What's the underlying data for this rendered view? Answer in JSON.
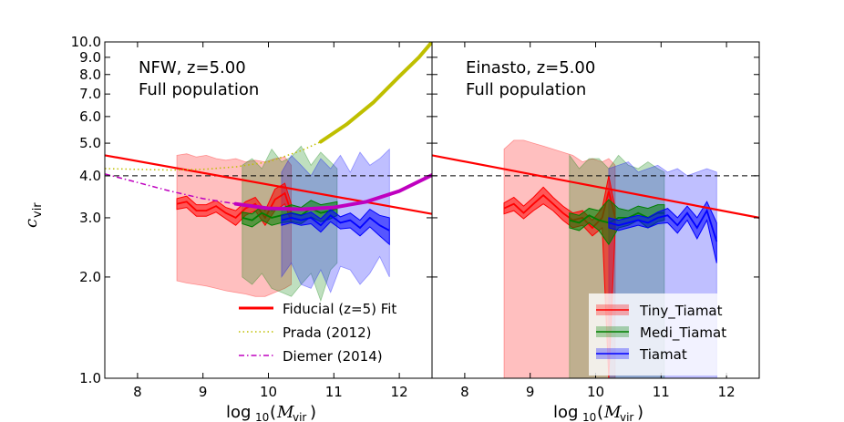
{
  "chart_data": [
    {
      "type": "line",
      "title": "",
      "annotation_line1": "NFW, z=5.00",
      "annotation_line2": "Full population",
      "xlabel": "log10(Mvir)",
      "ylabel": "c_vir",
      "xlim": [
        7.5,
        12.5
      ],
      "ylim": [
        1.0,
        10.0
      ],
      "yscale": "log",
      "xticks": [
        "8",
        "9",
        "10",
        "11",
        "12"
      ],
      "yticks": [
        "1.0",
        "2.0",
        "3.0",
        "4.0",
        "5.0",
        "6.0",
        "7.0",
        "8.0",
        "9.0",
        "10.0"
      ],
      "reference_line": 4.0,
      "legend": {
        "placement": "bottom-right",
        "entries": [
          "Fiducial (z=5) Fit",
          "Prada  (2012)",
          "Diemer (2014)"
        ]
      },
      "series": [
        {
          "name": "Fiducial (z=5) Fit",
          "color": "#ff0000",
          "style": "solid",
          "x": [
            7.5,
            12.5
          ],
          "y": [
            4.6,
            3.08
          ]
        },
        {
          "name": "Prada  (2012)",
          "color": "#bfbf00",
          "style": "dotted",
          "x": [
            7.5,
            8.0,
            8.5,
            9.0,
            9.5,
            10.0,
            10.5,
            10.8
          ],
          "y": [
            4.2,
            4.18,
            4.16,
            4.18,
            4.25,
            4.4,
            4.75,
            5.05
          ]
        },
        {
          "name": "Prada (2012) computed range",
          "color": "#bfbf00",
          "style": "thick",
          "x": [
            10.8,
            11.2,
            11.6,
            12.0,
            12.3,
            12.5
          ],
          "y": [
            5.05,
            5.7,
            6.6,
            7.9,
            9.0,
            10.0
          ]
        },
        {
          "name": "Diemer (2014)",
          "color": "#bf00bf",
          "style": "dashdot",
          "x": [
            7.5,
            8.0,
            8.5,
            9.0,
            9.5
          ],
          "y": [
            4.05,
            3.82,
            3.6,
            3.42,
            3.3
          ]
        },
        {
          "name": "Diemer (2014) computed range",
          "color": "#bf00bf",
          "style": "thick",
          "x": [
            9.5,
            10.0,
            10.5,
            11.0,
            11.5,
            12.0,
            12.5
          ],
          "y": [
            3.3,
            3.2,
            3.18,
            3.22,
            3.35,
            3.6,
            4.02
          ]
        },
        {
          "name": "Tiny_Tiamat",
          "color": "#ff0000",
          "fill": "#ff0000",
          "x": [
            8.6,
            8.75,
            8.9,
            9.05,
            9.2,
            9.35,
            9.5,
            9.65,
            9.8,
            9.95,
            10.1,
            10.25,
            10.35
          ],
          "y": [
            3.3,
            3.35,
            3.15,
            3.15,
            3.25,
            3.1,
            3.0,
            3.2,
            3.3,
            3.0,
            3.4,
            3.55,
            3.1
          ],
          "lo": [
            3.18,
            3.22,
            3.03,
            3.03,
            3.12,
            2.98,
            2.85,
            3.05,
            3.15,
            2.85,
            3.15,
            3.3,
            2.9
          ],
          "hi": [
            3.42,
            3.48,
            3.28,
            3.28,
            3.38,
            3.22,
            3.15,
            3.35,
            3.45,
            3.15,
            3.65,
            3.8,
            3.3
          ],
          "lo2": [
            1.95,
            1.92,
            1.9,
            1.88,
            1.85,
            1.82,
            1.8,
            1.78,
            1.75,
            1.75,
            1.8,
            1.85,
            1.9
          ],
          "hi2": [
            4.6,
            4.65,
            4.55,
            4.6,
            4.5,
            4.45,
            4.5,
            4.4,
            4.45,
            4.4,
            4.5,
            4.55,
            4.3
          ]
        },
        {
          "name": "Medi_Tiamat",
          "color": "#007f00",
          "fill": "#008000",
          "x": [
            9.6,
            9.75,
            9.9,
            10.05,
            10.2,
            10.35,
            10.5,
            10.65,
            10.8,
            10.95,
            11.05
          ],
          "y": [
            3.0,
            2.95,
            3.1,
            3.0,
            3.05,
            3.1,
            3.05,
            3.2,
            3.1,
            3.15,
            3.2
          ],
          "lo": [
            2.88,
            2.82,
            2.95,
            2.85,
            2.9,
            2.92,
            2.88,
            3.02,
            2.92,
            2.98,
            3.05
          ],
          "hi": [
            3.12,
            3.08,
            3.25,
            3.15,
            3.2,
            3.28,
            3.22,
            3.38,
            3.28,
            3.32,
            3.35
          ],
          "lo2": [
            2.0,
            1.9,
            2.05,
            1.85,
            1.8,
            1.75,
            1.9,
            2.05,
            1.7,
            2.1,
            2.2
          ],
          "hi2": [
            4.3,
            4.5,
            4.2,
            4.8,
            4.4,
            4.55,
            4.9,
            4.3,
            4.7,
            4.4,
            4.2
          ]
        },
        {
          "name": "Tiamat",
          "color": "#0000ff",
          "fill": "#0000ff",
          "x": [
            10.2,
            10.35,
            10.5,
            10.65,
            10.8,
            10.95,
            11.1,
            11.25,
            11.4,
            11.55,
            11.7,
            11.85
          ],
          "y": [
            2.95,
            3.0,
            2.95,
            3.0,
            2.85,
            3.05,
            2.9,
            2.95,
            2.8,
            3.0,
            2.85,
            2.75
          ],
          "lo": [
            2.85,
            2.9,
            2.85,
            2.88,
            2.72,
            2.92,
            2.78,
            2.8,
            2.65,
            2.82,
            2.65,
            2.5
          ],
          "hi": [
            3.05,
            3.1,
            3.05,
            3.12,
            2.98,
            3.18,
            3.02,
            3.1,
            2.95,
            3.18,
            3.05,
            3.0
          ],
          "lo2": [
            2.0,
            2.2,
            1.9,
            1.85,
            2.1,
            1.8,
            2.15,
            2.1,
            1.9,
            2.05,
            2.3,
            2.0
          ],
          "hi2": [
            4.1,
            4.6,
            4.3,
            4.0,
            4.5,
            4.2,
            4.6,
            4.1,
            4.7,
            4.3,
            4.5,
            4.8
          ]
        }
      ]
    },
    {
      "type": "line",
      "title": "",
      "annotation_line1": "Einasto, z=5.00",
      "annotation_line2": "Full population",
      "xlabel": "log10(Mvir)",
      "xlim": [
        7.5,
        12.5
      ],
      "ylim": [
        1.0,
        10.0
      ],
      "yscale": "log",
      "xticks": [
        "8",
        "9",
        "10",
        "11",
        "12"
      ],
      "reference_line": 4.0,
      "legend": {
        "placement": "bottom-right",
        "entries": [
          "Tiny_Tiamat",
          "Medi_Tiamat",
          "Tiamat"
        ]
      },
      "series": [
        {
          "name": "Fiducial (z=5) Fit",
          "color": "#ff0000",
          "style": "solid",
          "x": [
            7.5,
            12.5
          ],
          "y": [
            4.6,
            3.0
          ]
        },
        {
          "name": "Tiny_Tiamat",
          "color": "#ff0000",
          "fill": "#ff0000",
          "x": [
            8.6,
            8.75,
            8.9,
            9.05,
            9.2,
            9.35,
            9.5,
            9.65,
            9.8,
            9.95,
            10.1,
            10.2,
            10.3
          ],
          "y": [
            3.2,
            3.3,
            3.1,
            3.3,
            3.5,
            3.3,
            3.1,
            2.95,
            3.0,
            2.8,
            3.0,
            3.6,
            3.0
          ],
          "lo": [
            3.08,
            3.15,
            2.98,
            3.15,
            3.3,
            3.15,
            2.95,
            2.8,
            2.85,
            2.65,
            2.8,
            1.0,
            2.8
          ],
          "hi": [
            3.32,
            3.45,
            3.25,
            3.45,
            3.7,
            3.45,
            3.25,
            3.1,
            3.15,
            2.95,
            3.2,
            4.0,
            3.2
          ],
          "lo2": [
            1.0,
            1.0,
            1.0,
            1.0,
            1.0,
            1.0,
            1.0,
            1.0,
            1.0,
            1.0,
            1.0,
            1.0,
            1.0
          ],
          "hi2": [
            4.8,
            5.1,
            5.1,
            5.0,
            4.9,
            4.8,
            4.7,
            4.6,
            4.4,
            4.5,
            4.4,
            4.5,
            4.3
          ]
        },
        {
          "name": "Medi_Tiamat",
          "color": "#007f00",
          "fill": "#008000",
          "x": [
            9.6,
            9.75,
            9.9,
            10.05,
            10.2,
            10.35,
            10.5,
            10.65,
            10.8,
            10.95,
            11.05
          ],
          "y": [
            2.95,
            2.9,
            3.05,
            2.95,
            2.9,
            3.0,
            3.0,
            3.1,
            3.0,
            3.1,
            3.1
          ],
          "lo": [
            2.8,
            2.75,
            2.9,
            2.75,
            2.5,
            2.8,
            2.85,
            2.95,
            2.8,
            2.92,
            2.95
          ],
          "hi": [
            3.1,
            3.05,
            3.2,
            3.15,
            3.4,
            3.2,
            3.15,
            3.25,
            3.2,
            3.28,
            3.28
          ],
          "lo2": [
            1.0,
            1.0,
            1.0,
            1.0,
            1.0,
            1.0,
            1.0,
            1.0,
            1.0,
            1.0,
            1.0
          ],
          "hi2": [
            4.6,
            4.2,
            4.5,
            4.5,
            4.2,
            4.6,
            4.3,
            4.2,
            4.4,
            4.2,
            4.1
          ]
        },
        {
          "name": "Tiamat",
          "color": "#0000ff",
          "fill": "#0000ff",
          "x": [
            10.2,
            10.35,
            10.5,
            10.65,
            10.8,
            10.95,
            11.1,
            11.25,
            11.4,
            11.55,
            11.7,
            11.85
          ],
          "y": [
            2.9,
            2.85,
            2.9,
            2.95,
            2.9,
            3.0,
            3.05,
            2.85,
            3.1,
            2.8,
            3.15,
            2.55
          ],
          "lo": [
            2.8,
            2.75,
            2.8,
            2.85,
            2.8,
            2.88,
            2.9,
            2.7,
            2.95,
            2.6,
            2.95,
            2.2
          ],
          "hi": [
            3.0,
            2.95,
            3.0,
            3.05,
            3.0,
            3.12,
            3.2,
            3.0,
            3.25,
            3.0,
            3.35,
            2.9
          ],
          "lo2": [
            1.0,
            1.0,
            1.0,
            1.0,
            1.0,
            1.0,
            1.0,
            1.0,
            1.0,
            1.0,
            1.0,
            1.0
          ],
          "hi2": [
            4.2,
            4.3,
            4.4,
            4.1,
            4.2,
            4.3,
            4.1,
            4.2,
            4.0,
            4.1,
            4.2,
            4.1
          ]
        }
      ]
    }
  ]
}
